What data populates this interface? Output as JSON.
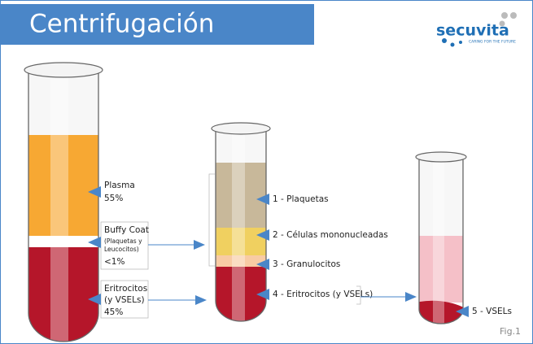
{
  "header": {
    "title": "Centrifugación",
    "logo": "secuvita",
    "tagline": "CARING FOR THE FUTURE"
  },
  "tube1": {
    "plasma": {
      "name": "Plasma",
      "percent": "55%"
    },
    "buffy": {
      "name": "Buffy Coat",
      "detail1": "(Plaquetas y",
      "detail2": "Leucocitos)",
      "percent": "<1%"
    },
    "eritro": {
      "name": "Eritrocitos",
      "detail": "(y VSELs)",
      "percent": "45%"
    }
  },
  "tube2": {
    "layers": [
      "1 - Plaquetas",
      "2 - Células mononucleadas",
      "3 - Granulocitos",
      "4 - Eritrocitos (y VSELs)"
    ]
  },
  "tube3": {
    "label": "5 - VSELs"
  },
  "figure_label": "Fig.1"
}
